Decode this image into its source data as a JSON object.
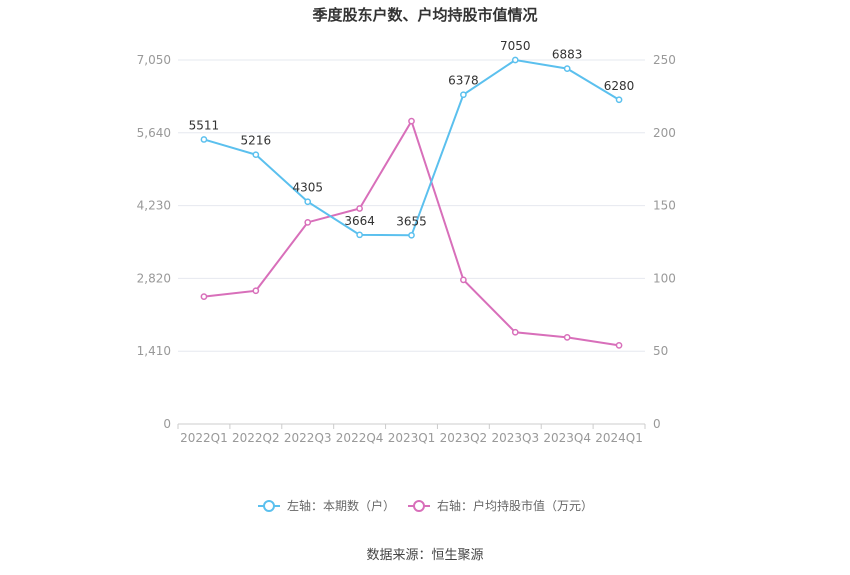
{
  "chart_data": {
    "type": "line",
    "title": "季度股东户数、户均持股市值情况",
    "categories": [
      "2022Q1",
      "2022Q2",
      "2022Q3",
      "2022Q4",
      "2023Q1",
      "2023Q2",
      "2023Q3",
      "2023Q4",
      "2024Q1"
    ],
    "left_axis": {
      "ticks": [
        "0",
        "1,410",
        "2,820",
        "4,230",
        "5,640",
        "7,050"
      ],
      "ylim": [
        0,
        7050
      ]
    },
    "right_axis": {
      "ticks": [
        "0",
        "50",
        "100",
        "150",
        "200",
        "250"
      ],
      "ylim": [
        0,
        250
      ]
    },
    "grid": true,
    "legend_position": "bottom",
    "series": [
      {
        "name": "左轴：本期数（户）",
        "axis": "left",
        "color": "#5bc0ee",
        "values": [
          5511,
          5216,
          4305,
          3664,
          3655,
          6378,
          7050,
          6883,
          6280
        ],
        "labels": [
          "5511",
          "5216",
          "4305",
          "3664",
          "3655",
          "6378",
          "7050",
          "6883",
          "6280"
        ]
      },
      {
        "name": "右轴：户均持股市值（万元）",
        "axis": "right",
        "color": "#d86fba",
        "values": [
          87.5,
          91.5,
          138.5,
          148.0,
          208.0,
          99.0,
          63.0,
          59.5,
          54.0
        ]
      }
    ],
    "source": "数据来源：恒生聚源"
  }
}
